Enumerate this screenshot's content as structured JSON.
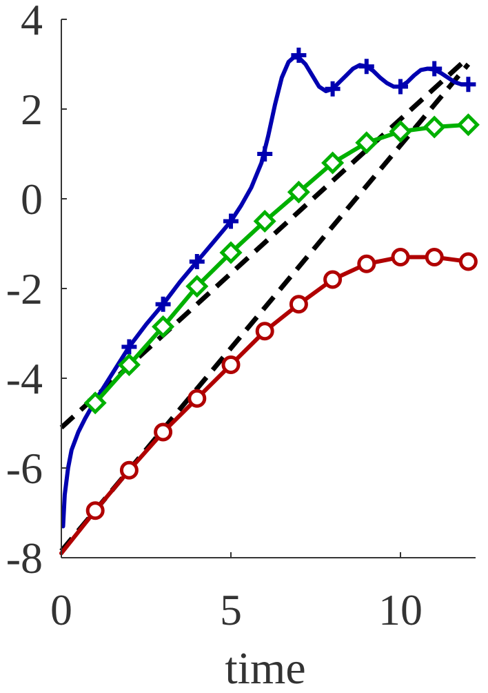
{
  "chart_data": {
    "type": "line",
    "title": "",
    "xlabel": "time",
    "ylabel": "",
    "xlim": [
      0,
      12.2
    ],
    "ylim": [
      -8,
      4
    ],
    "xticks": [
      0,
      5,
      10
    ],
    "yticks": [
      -8,
      -6,
      -4,
      -2,
      0,
      2,
      4
    ],
    "xtick_labels": [
      "0",
      "5",
      "10"
    ],
    "ytick_labels": [
      "-8",
      "-6",
      "-4",
      "-2",
      "0",
      "2",
      "4"
    ],
    "grid": false,
    "series": [
      {
        "color": "#0000b0",
        "marker": "plus",
        "x": [
          1,
          2,
          3,
          4,
          5,
          6,
          7,
          8,
          9,
          10,
          11,
          12
        ],
        "y": [
          -4.5,
          -3.3,
          -2.35,
          -1.4,
          -0.5,
          1.0,
          3.2,
          2.45,
          2.95,
          2.5,
          2.9,
          2.55
        ],
        "curve_x": [
          0.05,
          0.1,
          0.2,
          0.3,
          0.5,
          0.7,
          1.0,
          1.5,
          2.0,
          2.5,
          3.0,
          3.5,
          4.0,
          4.5,
          5.0,
          5.3,
          5.6,
          5.9,
          6.1,
          6.3,
          6.5,
          6.7,
          6.85,
          7.0,
          7.2,
          7.4,
          7.6,
          7.8,
          8.0,
          8.2,
          8.4,
          8.6,
          8.8,
          9.0,
          9.2,
          9.4,
          9.6,
          9.8,
          10.0,
          10.2,
          10.4,
          10.6,
          10.8,
          11.0,
          11.2,
          11.4,
          11.6,
          11.8,
          12.0
        ],
        "curve_y": [
          -7.3,
          -6.6,
          -6.0,
          -5.6,
          -5.2,
          -4.9,
          -4.5,
          -3.9,
          -3.3,
          -2.8,
          -2.35,
          -1.85,
          -1.4,
          -0.95,
          -0.5,
          -0.15,
          0.25,
          0.8,
          1.4,
          2.1,
          2.7,
          3.05,
          3.15,
          3.15,
          3.0,
          2.75,
          2.5,
          2.4,
          2.45,
          2.6,
          2.75,
          2.9,
          2.98,
          2.95,
          2.85,
          2.7,
          2.58,
          2.5,
          2.5,
          2.6,
          2.75,
          2.87,
          2.9,
          2.88,
          2.8,
          2.7,
          2.6,
          2.55,
          2.55
        ]
      },
      {
        "color": "#00b000",
        "marker": "diamond",
        "x": [
          1,
          2,
          3,
          4,
          5,
          6,
          7,
          8,
          9,
          10,
          11,
          12
        ],
        "y": [
          -4.55,
          -3.7,
          -2.85,
          -1.95,
          -1.2,
          -0.5,
          0.15,
          0.8,
          1.25,
          1.5,
          1.6,
          1.65
        ]
      },
      {
        "color": "#b00000",
        "marker": "circle",
        "x": [
          1,
          2,
          3,
          4,
          5,
          6,
          7,
          8,
          9,
          10,
          11,
          12
        ],
        "y": [
          -6.95,
          -6.05,
          -5.2,
          -4.45,
          -3.7,
          -2.95,
          -2.35,
          -1.8,
          -1.45,
          -1.3,
          -1.3,
          -1.4
        ],
        "curve_x": [
          0,
          1,
          2,
          3,
          4,
          5,
          6,
          7,
          8,
          9,
          10,
          11,
          12
        ],
        "curve_y": [
          -7.9,
          -6.95,
          -6.05,
          -5.2,
          -4.45,
          -3.7,
          -2.95,
          -2.35,
          -1.8,
          -1.45,
          -1.3,
          -1.3,
          -1.4
        ]
      }
    ],
    "reference_lines": [
      {
        "color": "#000000",
        "style": "dashed",
        "x": [
          0,
          12.0
        ],
        "y": [
          -5.1,
          3.15
        ]
      },
      {
        "color": "#000000",
        "style": "dashed",
        "x": [
          0,
          12.0
        ],
        "y": [
          -7.85,
          3.0
        ]
      }
    ]
  }
}
